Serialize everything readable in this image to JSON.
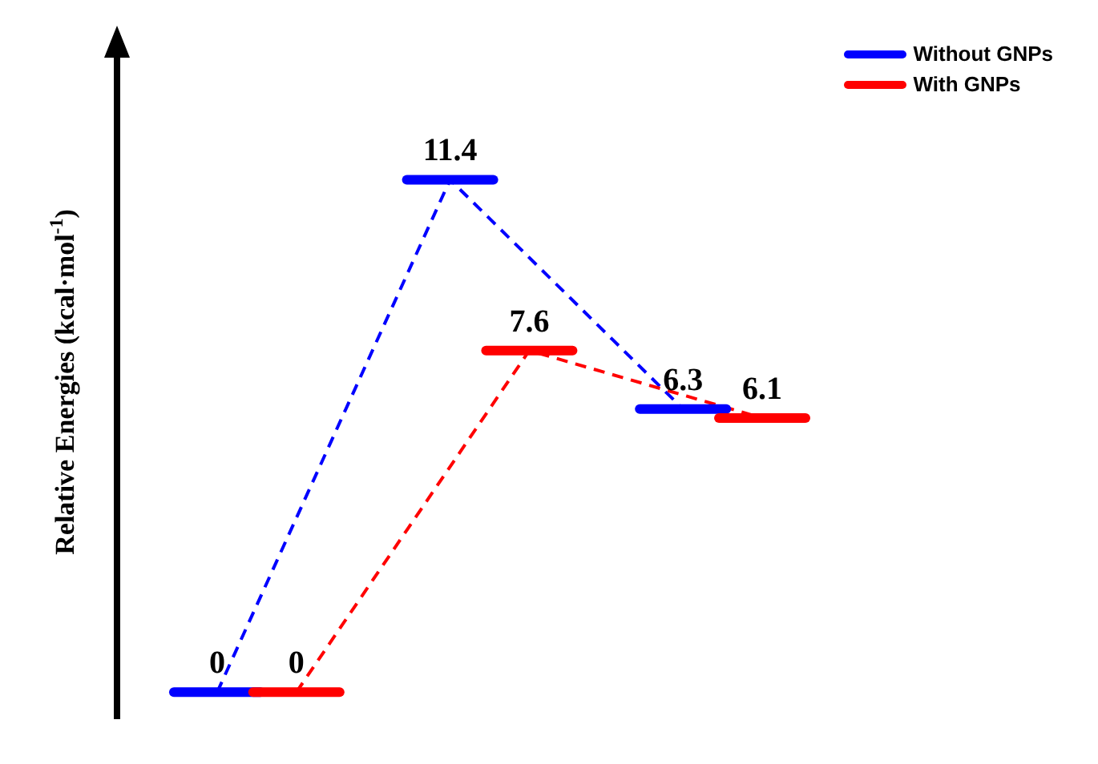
{
  "chart_data": {
    "type": "line",
    "ylabel": "Relative Energies (kcal·mol$^{-1}$)",
    "categories": [
      null,
      null,
      null
    ],
    "series": [
      {
        "name": "Without GNPs",
        "color": "#0000ff",
        "values": [
          0,
          11.4,
          6.3
        ]
      },
      {
        "name": "With GNPs",
        "color": "#ff0000",
        "values": [
          0,
          7.6,
          6.1
        ]
      }
    ],
    "ylim": [
      -0.6,
      14.4
    ],
    "data_labels": true,
    "legend": "top right",
    "line_style": "dashed"
  }
}
